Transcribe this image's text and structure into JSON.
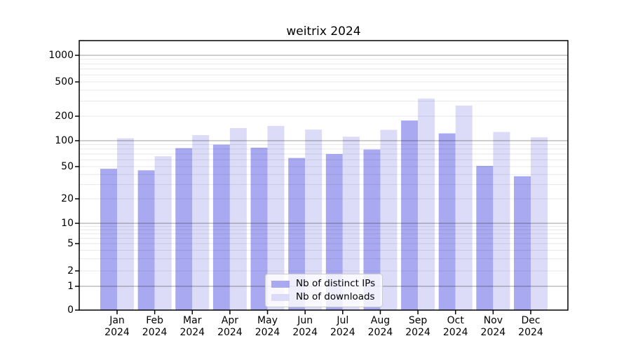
{
  "chart_data": {
    "type": "bar",
    "title": "weitrix 2024",
    "categories": [
      [
        "Jan",
        "2024"
      ],
      [
        "Feb",
        "2024"
      ],
      [
        "Mar",
        "2024"
      ],
      [
        "Apr",
        "2024"
      ],
      [
        "May",
        "2024"
      ],
      [
        "Jun",
        "2024"
      ],
      [
        "Jul",
        "2024"
      ],
      [
        "Aug",
        "2024"
      ],
      [
        "Sep",
        "2024"
      ],
      [
        "Oct",
        "2024"
      ],
      [
        "Nov",
        "2024"
      ],
      [
        "Dec",
        "2024"
      ]
    ],
    "series": [
      {
        "name": "Nb of distinct IPs",
        "color": "#a9a9f2",
        "values": [
          47,
          45,
          82,
          90,
          83,
          63,
          70,
          79,
          177,
          123,
          51,
          38
        ]
      },
      {
        "name": "Nb of downloads",
        "color": "#dcdcf8",
        "values": [
          107,
          66,
          117,
          143,
          152,
          137,
          112,
          136,
          320,
          266,
          128,
          110
        ]
      }
    ],
    "y_axis": {
      "scale": "symlog",
      "ticks": [
        0,
        1,
        2,
        5,
        10,
        20,
        50,
        100,
        200,
        500,
        1000
      ],
      "major_gridlines": [
        1,
        10,
        100,
        1000
      ],
      "minor_gridline_multiples": [
        2,
        3,
        4,
        5,
        6,
        7,
        8,
        9
      ]
    },
    "x_axis": {
      "year": "2024"
    },
    "legend": {
      "position": "bottom-center"
    },
    "grid": true,
    "colors": {
      "spine": "#000000",
      "major_grid": "rgba(0,0,0,0.31)",
      "minor_grid": "rgba(0,0,0,0.09)"
    }
  }
}
